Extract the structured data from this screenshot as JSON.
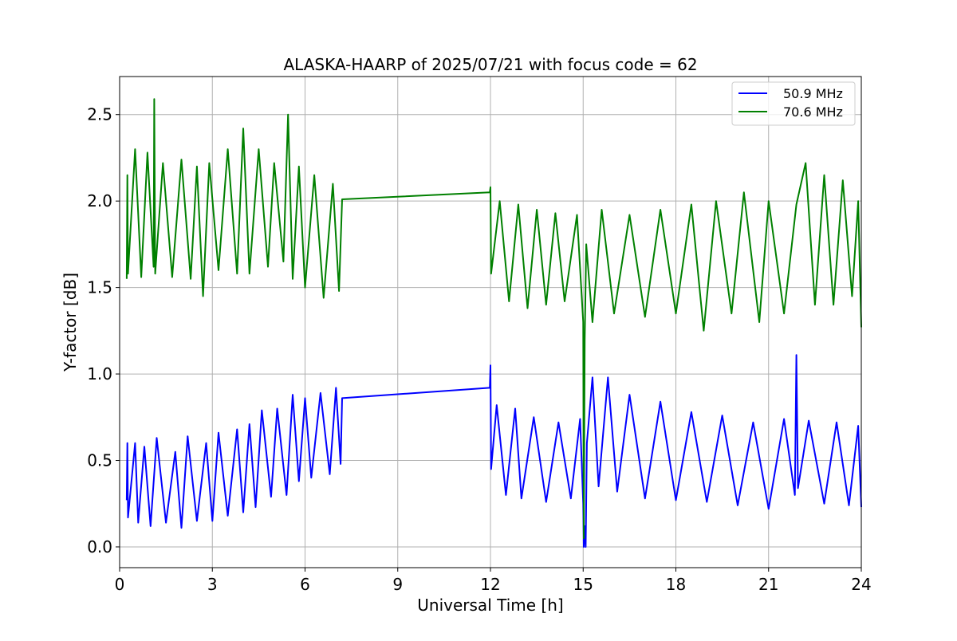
{
  "chart_data": {
    "type": "line",
    "title": "ALASKA-HAARP of 2025/07/21 with focus code = 62",
    "xlabel": "Universal Time [h]",
    "ylabel": "Y-factor [dB]",
    "xlim": [
      0,
      24
    ],
    "ylim": [
      -0.12,
      2.72
    ],
    "x_ticks": [
      0,
      3,
      6,
      9,
      12,
      15,
      18,
      21,
      24
    ],
    "x_tick_labels": [
      "0",
      "3",
      "6",
      "9",
      "12",
      "15",
      "18",
      "21",
      "24"
    ],
    "y_ticks": [
      0.0,
      0.5,
      1.0,
      1.5,
      2.0,
      2.5
    ],
    "y_tick_labels": [
      "0.0",
      "0.5",
      "1.0",
      "1.5",
      "2.0",
      "2.5"
    ],
    "grid": true,
    "legend_position": "top-right",
    "series": [
      {
        "name": "50.9 MHz",
        "color": "#0000ff",
        "points": [
          [
            0.23,
            0.27
          ],
          [
            0.25,
            0.6
          ],
          [
            0.27,
            0.17
          ],
          [
            0.5,
            0.6
          ],
          [
            0.6,
            0.14
          ],
          [
            0.8,
            0.58
          ],
          [
            1.0,
            0.12
          ],
          [
            1.2,
            0.63
          ],
          [
            1.5,
            0.14
          ],
          [
            1.8,
            0.55
          ],
          [
            2.0,
            0.11
          ],
          [
            2.2,
            0.64
          ],
          [
            2.5,
            0.15
          ],
          [
            2.8,
            0.6
          ],
          [
            3.0,
            0.15
          ],
          [
            3.2,
            0.66
          ],
          [
            3.5,
            0.18
          ],
          [
            3.8,
            0.68
          ],
          [
            4.0,
            0.2
          ],
          [
            4.2,
            0.71
          ],
          [
            4.4,
            0.23
          ],
          [
            4.6,
            0.79
          ],
          [
            4.9,
            0.29
          ],
          [
            5.1,
            0.8
          ],
          [
            5.4,
            0.3
          ],
          [
            5.6,
            0.88
          ],
          [
            5.8,
            0.38
          ],
          [
            6.0,
            0.86
          ],
          [
            6.2,
            0.4
          ],
          [
            6.5,
            0.89
          ],
          [
            6.8,
            0.42
          ],
          [
            7.0,
            0.92
          ],
          [
            7.15,
            0.48
          ],
          [
            7.2,
            0.86
          ],
          [
            11.98,
            0.92
          ],
          [
            12.0,
            1.05
          ],
          [
            12.02,
            0.45
          ],
          [
            12.2,
            0.82
          ],
          [
            12.5,
            0.3
          ],
          [
            12.8,
            0.8
          ],
          [
            13.0,
            0.28
          ],
          [
            13.4,
            0.75
          ],
          [
            13.8,
            0.26
          ],
          [
            14.2,
            0.72
          ],
          [
            14.6,
            0.28
          ],
          [
            14.9,
            0.74
          ],
          [
            15.0,
            0.25
          ],
          [
            15.02,
            0.0
          ],
          [
            15.05,
            0.12
          ],
          [
            15.08,
            0.0
          ],
          [
            15.12,
            0.6
          ],
          [
            15.3,
            0.98
          ],
          [
            15.5,
            0.35
          ],
          [
            15.8,
            0.98
          ],
          [
            16.1,
            0.32
          ],
          [
            16.5,
            0.88
          ],
          [
            17.0,
            0.28
          ],
          [
            17.5,
            0.84
          ],
          [
            18.0,
            0.27
          ],
          [
            18.5,
            0.78
          ],
          [
            19.0,
            0.26
          ],
          [
            19.5,
            0.76
          ],
          [
            20.0,
            0.24
          ],
          [
            20.5,
            0.72
          ],
          [
            21.0,
            0.22
          ],
          [
            21.5,
            0.74
          ],
          [
            21.85,
            0.3
          ],
          [
            21.9,
            1.11
          ],
          [
            21.95,
            0.34
          ],
          [
            22.3,
            0.73
          ],
          [
            22.8,
            0.25
          ],
          [
            23.2,
            0.72
          ],
          [
            23.6,
            0.24
          ],
          [
            23.9,
            0.7
          ],
          [
            24.0,
            0.23
          ]
        ]
      },
      {
        "name": "70.6 MHz",
        "color": "#008000",
        "points": [
          [
            0.23,
            1.55
          ],
          [
            0.25,
            2.15
          ],
          [
            0.27,
            1.58
          ],
          [
            0.5,
            2.3
          ],
          [
            0.7,
            1.56
          ],
          [
            0.9,
            2.28
          ],
          [
            1.1,
            1.62
          ],
          [
            1.12,
            2.59
          ],
          [
            1.15,
            1.58
          ],
          [
            1.4,
            2.22
          ],
          [
            1.7,
            1.56
          ],
          [
            2.0,
            2.24
          ],
          [
            2.3,
            1.55
          ],
          [
            2.5,
            2.2
          ],
          [
            2.7,
            1.45
          ],
          [
            2.9,
            2.22
          ],
          [
            3.2,
            1.6
          ],
          [
            3.5,
            2.3
          ],
          [
            3.8,
            1.58
          ],
          [
            4.0,
            2.42
          ],
          [
            4.2,
            1.58
          ],
          [
            4.5,
            2.3
          ],
          [
            4.8,
            1.62
          ],
          [
            5.0,
            2.22
          ],
          [
            5.3,
            1.65
          ],
          [
            5.45,
            2.5
          ],
          [
            5.6,
            1.55
          ],
          [
            5.8,
            2.2
          ],
          [
            6.0,
            1.5
          ],
          [
            6.3,
            2.15
          ],
          [
            6.6,
            1.44
          ],
          [
            6.9,
            2.1
          ],
          [
            7.1,
            1.48
          ],
          [
            7.2,
            2.01
          ],
          [
            11.98,
            2.05
          ],
          [
            12.0,
            2.08
          ],
          [
            12.02,
            1.58
          ],
          [
            12.3,
            2.0
          ],
          [
            12.6,
            1.42
          ],
          [
            12.9,
            1.98
          ],
          [
            13.2,
            1.38
          ],
          [
            13.5,
            1.95
          ],
          [
            13.8,
            1.4
          ],
          [
            14.1,
            1.93
          ],
          [
            14.4,
            1.42
          ],
          [
            14.8,
            1.92
          ],
          [
            15.0,
            1.3
          ],
          [
            15.02,
            0.05
          ],
          [
            15.05,
            1.2
          ],
          [
            15.1,
            1.75
          ],
          [
            15.3,
            1.3
          ],
          [
            15.6,
            1.95
          ],
          [
            16.0,
            1.35
          ],
          [
            16.5,
            1.92
          ],
          [
            17.0,
            1.33
          ],
          [
            17.5,
            1.95
          ],
          [
            18.0,
            1.35
          ],
          [
            18.5,
            1.98
          ],
          [
            18.9,
            1.25
          ],
          [
            19.3,
            2.0
          ],
          [
            19.8,
            1.35
          ],
          [
            20.2,
            2.05
          ],
          [
            20.7,
            1.3
          ],
          [
            21.0,
            2.0
          ],
          [
            21.5,
            1.35
          ],
          [
            21.9,
            1.98
          ],
          [
            22.2,
            2.22
          ],
          [
            22.5,
            1.4
          ],
          [
            22.8,
            2.15
          ],
          [
            23.1,
            1.4
          ],
          [
            23.4,
            2.12
          ],
          [
            23.7,
            1.45
          ],
          [
            23.9,
            2.0
          ],
          [
            24.0,
            1.27
          ]
        ]
      }
    ]
  }
}
